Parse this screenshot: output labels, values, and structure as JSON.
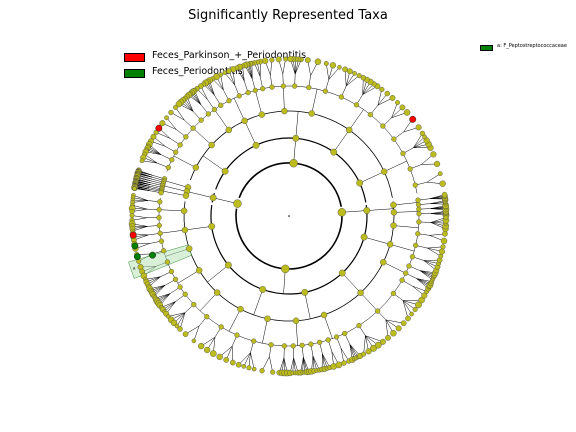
{
  "chart_data": {
    "type": "cladogram",
    "title": "Significantly Represented Taxa",
    "legend": [
      {
        "label": "Feces_Parkinson_+_Periodontitis",
        "color": "#ff0000"
      },
      {
        "label": "Feces_Periodontitis",
        "color": "#008000"
      }
    ],
    "side_legend": [
      {
        "label": "a: F_Peptostreptococcaceae",
        "color": "#008000"
      }
    ],
    "node_color_default": "#bcbc1e",
    "legend_placement": "top-left",
    "clade_label_marker": "a",
    "enriched_nodes": [
      {
        "group": "Feces_Parkinson_+_Periodontitis",
        "count": 3
      },
      {
        "group": "Feces_Periodontitis",
        "count": 3
      }
    ]
  }
}
